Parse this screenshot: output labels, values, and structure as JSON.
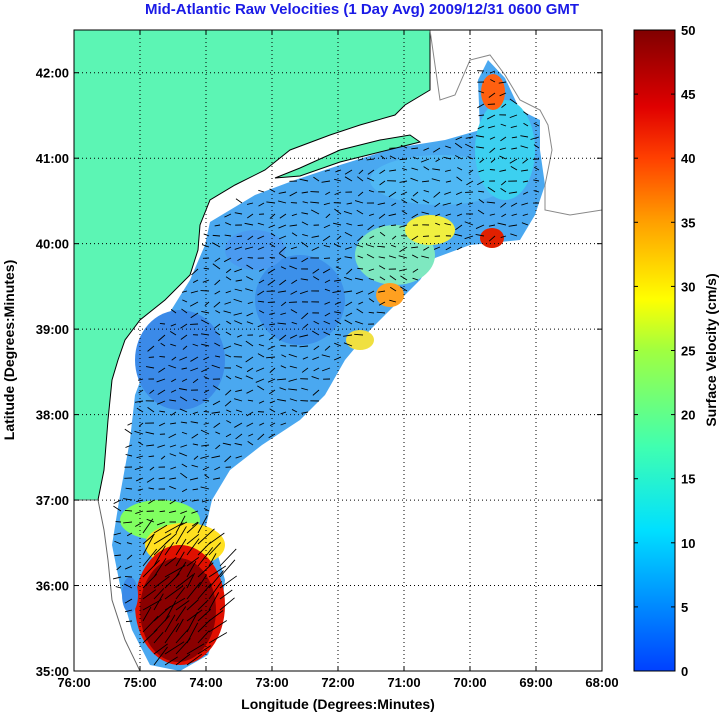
{
  "title": "Mid-Atlantic Raw Velocities (1 Day Avg) 2009/12/31 0600 GMT",
  "x_axis": {
    "label": "Longitude (Degrees:Minutes)",
    "ticks": [
      "76:00",
      "75:00",
      "74:00",
      "73:00",
      "72:00",
      "71:00",
      "70:00",
      "69:00",
      "68:00"
    ],
    "range": [
      -76,
      -68
    ]
  },
  "y_axis": {
    "label": "Latitude (Degrees:Minutes)",
    "ticks": [
      "35:00",
      "36:00",
      "37:00",
      "38:00",
      "39:00",
      "40:00",
      "41:00",
      "42:00"
    ],
    "range": [
      35,
      42.5
    ]
  },
  "colorbar": {
    "label": "Surface Velocity (cm/s)",
    "ticks": [
      "0",
      "5",
      "10",
      "15",
      "20",
      "25",
      "30",
      "35",
      "40",
      "45",
      "50"
    ],
    "range": [
      0,
      50
    ],
    "colormap": "jet"
  },
  "colors": {
    "land": "#5cf5b4",
    "title": "#1a1ae6",
    "background": "#ffffff"
  },
  "grid": true
}
